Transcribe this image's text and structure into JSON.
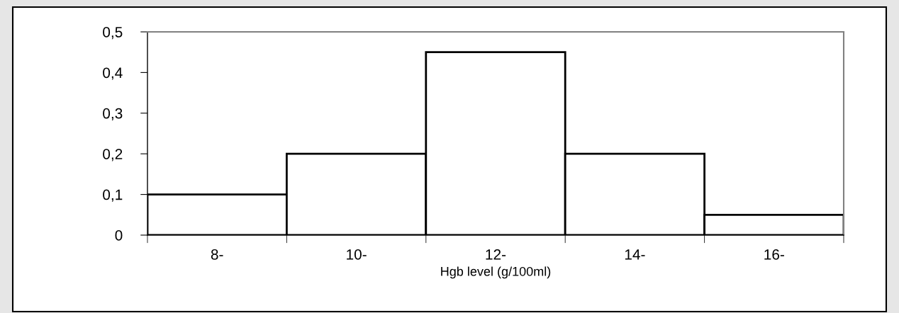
{
  "chart_data": {
    "type": "bar",
    "xlabel": "Hgb level (g/100ml)",
    "categories": [
      "8-",
      "10-",
      "12-",
      "14-",
      "16-"
    ],
    "values": [
      0.1,
      0.2,
      0.45,
      0.2,
      0.05
    ],
    "color": "#ffffff",
    "ylim": [
      0,
      0.5
    ],
    "yticks": [
      {
        "value": 0,
        "label": "0"
      },
      {
        "value": 0.1,
        "label": "0,1"
      },
      {
        "value": 0.2,
        "label": "0,2"
      },
      {
        "value": 0.3,
        "label": "0,3"
      },
      {
        "value": 0.4,
        "label": "0,4"
      },
      {
        "value": 0.5,
        "label": "0,5"
      }
    ]
  }
}
